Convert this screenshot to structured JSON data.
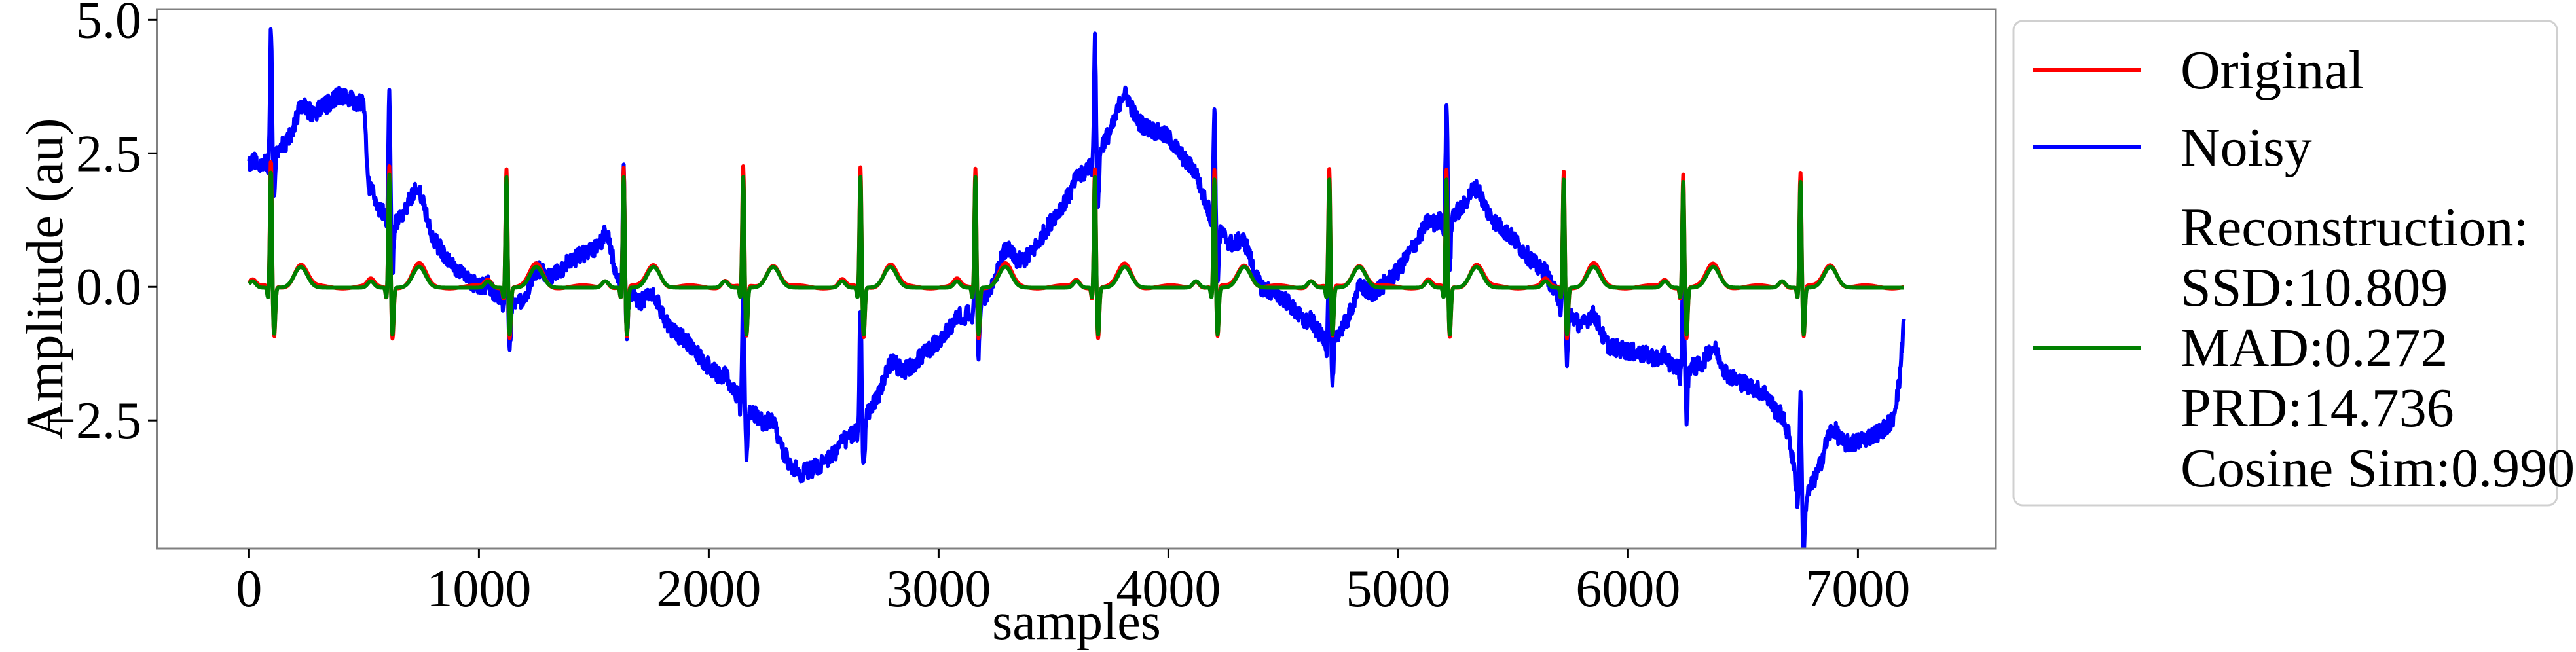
{
  "chart_data": {
    "type": "line",
    "title": "",
    "xlabel": "samples",
    "ylabel": "Amplitude (au)",
    "xlim": [
      -400,
      7600
    ],
    "ylim": [
      -4.9,
      5.2
    ],
    "xticks": [
      0,
      1000,
      2000,
      3000,
      4000,
      5000,
      6000,
      7000
    ],
    "xtick_labels": [
      "0",
      "1000",
      "2000",
      "3000",
      "4000",
      "5000",
      "6000",
      "7000"
    ],
    "yticks": [
      5.0,
      2.5,
      0.0,
      -2.5
    ],
    "ytick_labels": [
      "5.0",
      "2.5",
      "0.0",
      "−2.5"
    ],
    "grid": false,
    "legend_position": "right, outside plot area",
    "x_range": [
      0,
      7200
    ],
    "beats": [
      {
        "r_peak_sample": 95,
        "r_amplitude": 2.4
      },
      {
        "r_peak_sample": 610,
        "r_amplitude": 2.3
      },
      {
        "r_peak_sample": 1120,
        "r_amplitude": 2.25
      },
      {
        "r_peak_sample": 1630,
        "r_amplitude": 2.25
      },
      {
        "r_peak_sample": 2150,
        "r_amplitude": 2.25
      },
      {
        "r_peak_sample": 2660,
        "r_amplitude": 2.25
      },
      {
        "r_peak_sample": 3160,
        "r_amplitude": 2.25
      },
      {
        "r_peak_sample": 3680,
        "r_amplitude": 2.25
      },
      {
        "r_peak_sample": 4200,
        "r_amplitude": 2.2
      },
      {
        "r_peak_sample": 4700,
        "r_amplitude": 2.2
      },
      {
        "r_peak_sample": 5210,
        "r_amplitude": 2.2
      },
      {
        "r_peak_sample": 5720,
        "r_amplitude": 2.2
      },
      {
        "r_peak_sample": 6240,
        "r_amplitude": 2.15
      },
      {
        "r_peak_sample": 6750,
        "r_amplitude": 2.15
      }
    ],
    "baseline_wander": {
      "x": [
        0,
        60,
        100,
        200,
        300,
        400,
        500,
        520,
        560,
        640,
        700,
        740,
        800,
        900,
        1000,
        1100,
        1200,
        1300,
        1400,
        1500,
        1560,
        1600,
        1700,
        1800,
        1900,
        2000,
        2100,
        2200,
        2300,
        2400,
        2500,
        2600,
        2700,
        2800,
        2900,
        3000,
        3100,
        3200,
        3300,
        3400,
        3500,
        3600,
        3700,
        3800,
        3900,
        4000,
        4100,
        4200,
        4300,
        4400,
        4500,
        4600,
        4700,
        4800,
        4900,
        5000,
        5100,
        5200,
        5300,
        5400,
        5500,
        5600,
        5700,
        5800,
        5900,
        6000,
        6100,
        6200,
        6300,
        6400,
        6500,
        6600,
        6700,
        6750,
        6800,
        6900,
        7000,
        7100,
        7150,
        7180,
        7200
      ],
      "y": [
        2.2,
        2.3,
        2.5,
        2.8,
        3.3,
        3.6,
        3.4,
        1.8,
        1.5,
        1.2,
        1.5,
        1.4,
        0.9,
        0.3,
        0.0,
        -0.2,
        -0.3,
        0.1,
        0.5,
        0.7,
        0.9,
        0.2,
        -0.3,
        -0.7,
        -1.0,
        -1.5,
        -1.9,
        -2.4,
        -3.1,
        -3.5,
        -3.3,
        -2.9,
        -2.3,
        -1.8,
        -1.4,
        -1.0,
        -0.6,
        -0.2,
        0.3,
        0.6,
        1.3,
        1.9,
        2.6,
        3.2,
        3.0,
        2.8,
        2.2,
        1.2,
        0.6,
        0.0,
        -0.2,
        -0.7,
        -1.0,
        -0.6,
        -0.1,
        0.3,
        1.0,
        1.3,
        1.5,
        1.3,
        0.9,
        0.4,
        -0.2,
        -0.8,
        -1.1,
        -1.2,
        -1.3,
        -1.5,
        -1.5,
        -1.6,
        -1.8,
        -2.0,
        -2.8,
        -4.2,
        -3.7,
        -3.0,
        -2.9,
        -2.7,
        -2.5,
        -1.8,
        -0.6
      ]
    },
    "series": [
      {
        "name": "Original",
        "color": "#ff0000"
      },
      {
        "name": "Noisy",
        "color": "#0000ff"
      },
      {
        "name": "Reconstruction:\nSSD:10.809\nMAD:0.272\nPRD:14.736\nCosine Sim:0.990",
        "color": "#008000"
      }
    ],
    "legend": [
      {
        "label_lines": [
          "Original"
        ],
        "color": "#ff0000"
      },
      {
        "label_lines": [
          "Noisy"
        ],
        "color": "#0000ff"
      },
      {
        "label_lines": [
          "Reconstruction:",
          "SSD:10.809",
          "MAD:0.272",
          "PRD:14.736",
          "Cosine Sim:0.990"
        ],
        "color": "#008000"
      }
    ]
  }
}
